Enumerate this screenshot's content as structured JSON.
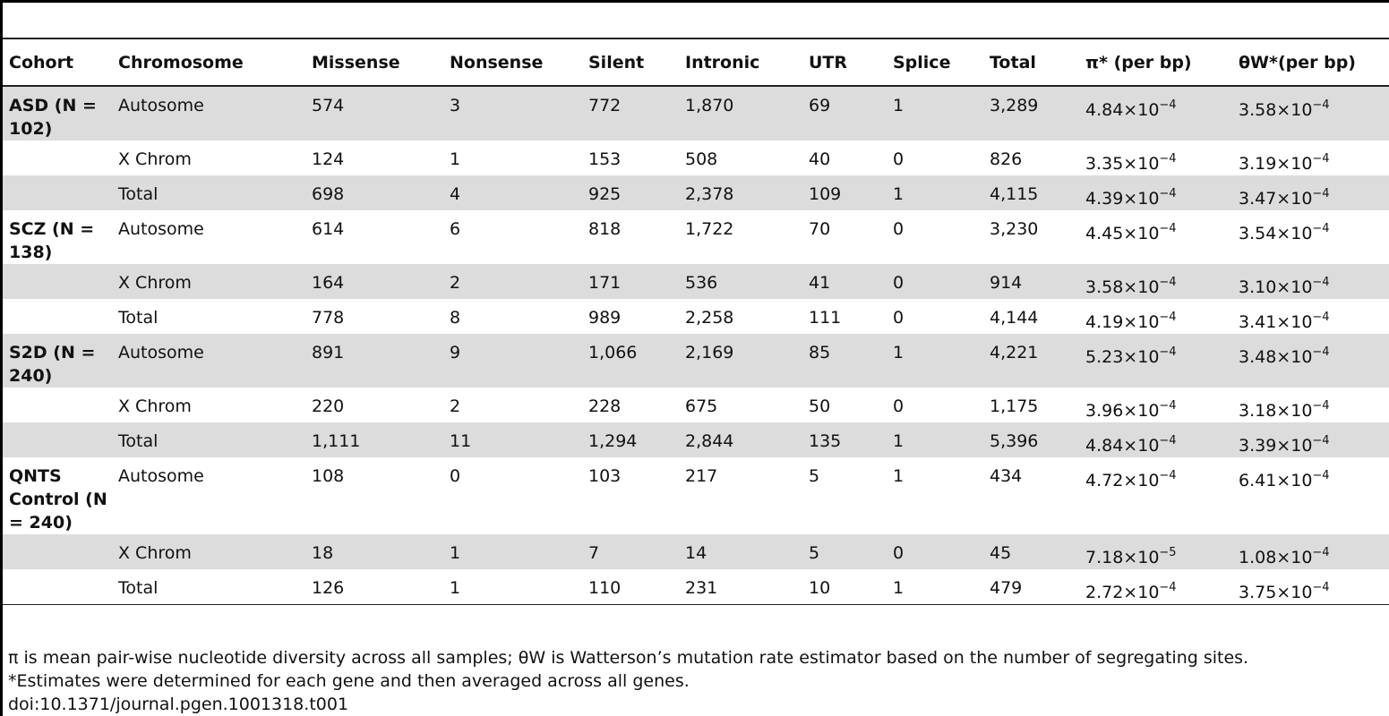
{
  "columns": [
    "Cohort",
    "Chromosome",
    "Missense",
    "Nonsense",
    "Silent",
    "Intronic",
    "UTR",
    "Splice",
    "Total",
    "π* (per bp)",
    "θW*(per bp)"
  ],
  "rows": [
    {
      "cohort": "ASD (N = 102)",
      "chromosome": "Autosome",
      "missense": "574",
      "nonsense": "3",
      "silent": "772",
      "intronic": "1,870",
      "utr": "69",
      "splice": "1",
      "total": "3,289",
      "pi": {
        "m": "4.84×10",
        "e": "−4"
      },
      "theta": {
        "m": "3.58×10",
        "e": "−4"
      }
    },
    {
      "cohort": "",
      "chromosome": "X Chrom",
      "missense": "124",
      "nonsense": "1",
      "silent": "153",
      "intronic": "508",
      "utr": "40",
      "splice": "0",
      "total": "826",
      "pi": {
        "m": "3.35×10",
        "e": "−4"
      },
      "theta": {
        "m": "3.19×10",
        "e": "−4"
      }
    },
    {
      "cohort": "",
      "chromosome": "Total",
      "missense": "698",
      "nonsense": "4",
      "silent": "925",
      "intronic": "2,378",
      "utr": "109",
      "splice": "1",
      "total": "4,115",
      "pi": {
        "m": "4.39×10",
        "e": "−4"
      },
      "theta": {
        "m": "3.47×10",
        "e": "−4"
      }
    },
    {
      "cohort": "SCZ (N = 138)",
      "chromosome": "Autosome",
      "missense": "614",
      "nonsense": "6",
      "silent": "818",
      "intronic": "1,722",
      "utr": "70",
      "splice": "0",
      "total": "3,230",
      "pi": {
        "m": "4.45×10",
        "e": "−4"
      },
      "theta": {
        "m": "3.54×10",
        "e": "−4"
      }
    },
    {
      "cohort": "",
      "chromosome": "X Chrom",
      "missense": "164",
      "nonsense": "2",
      "silent": "171",
      "intronic": "536",
      "utr": "41",
      "splice": "0",
      "total": "914",
      "pi": {
        "m": "3.58×10",
        "e": "−4"
      },
      "theta": {
        "m": "3.10×10",
        "e": "−4"
      }
    },
    {
      "cohort": "",
      "chromosome": "Total",
      "missense": "778",
      "nonsense": "8",
      "silent": "989",
      "intronic": "2,258",
      "utr": "111",
      "splice": "0",
      "total": "4,144",
      "pi": {
        "m": "4.19×10",
        "e": "−4"
      },
      "theta": {
        "m": "3.41×10",
        "e": "−4"
      }
    },
    {
      "cohort": "S2D (N = 240)",
      "chromosome": "Autosome",
      "missense": "891",
      "nonsense": "9",
      "silent": "1,066",
      "intronic": "2,169",
      "utr": "85",
      "splice": "1",
      "total": "4,221",
      "pi": {
        "m": "5.23×10",
        "e": "−4"
      },
      "theta": {
        "m": "3.48×10",
        "e": "−4"
      }
    },
    {
      "cohort": "",
      "chromosome": "X Chrom",
      "missense": "220",
      "nonsense": "2",
      "silent": "228",
      "intronic": "675",
      "utr": "50",
      "splice": "0",
      "total": "1,175",
      "pi": {
        "m": "3.96×10",
        "e": "−4"
      },
      "theta": {
        "m": "3.18×10",
        "e": "−4"
      }
    },
    {
      "cohort": "",
      "chromosome": "Total",
      "missense": "1,111",
      "nonsense": "11",
      "silent": "1,294",
      "intronic": "2,844",
      "utr": "135",
      "splice": "1",
      "total": "5,396",
      "pi": {
        "m": "4.84×10",
        "e": "−4"
      },
      "theta": {
        "m": "3.39×10",
        "e": "−4"
      }
    },
    {
      "cohort": "QNTS Control (N = 240)",
      "chromosome": "Autosome",
      "missense": "108",
      "nonsense": "0",
      "silent": "103",
      "intronic": "217",
      "utr": "5",
      "splice": "1",
      "total": "434",
      "pi": {
        "m": "4.72×10",
        "e": "−4"
      },
      "theta": {
        "m": "6.41×10",
        "e": "−4"
      }
    },
    {
      "cohort": "",
      "chromosome": "X Chrom",
      "missense": "18",
      "nonsense": "1",
      "silent": "7",
      "intronic": "14",
      "utr": "5",
      "splice": "0",
      "total": "45",
      "pi": {
        "m": "7.18×10",
        "e": "−5"
      },
      "theta": {
        "m": "1.08×10",
        "e": "−4"
      }
    },
    {
      "cohort": "",
      "chromosome": "Total",
      "missense": "126",
      "nonsense": "1",
      "silent": "110",
      "intronic": "231",
      "utr": "10",
      "splice": "1",
      "total": "479",
      "pi": {
        "m": "2.72×10",
        "e": "−4"
      },
      "theta": {
        "m": "3.75×10",
        "e": "−4"
      }
    }
  ],
  "footnotes": [
    "π is mean pair-wise nucleotide diversity across all samples; θW is Watterson’s mutation rate estimator based on the number of segregating sites.",
    "*Estimates were determined for each gene and then averaged across all genes.",
    "doi:10.1371/journal.pgen.1001318.t001"
  ]
}
